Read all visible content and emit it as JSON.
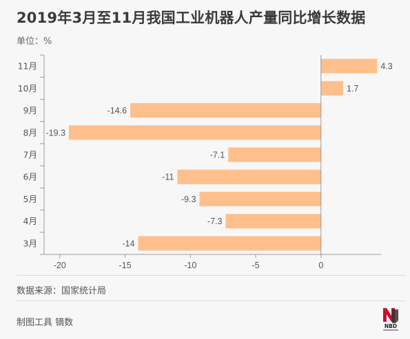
{
  "header": {
    "title": "2019年3月至11月我国工业机器人产量同比增长数据",
    "unit": "单位：%"
  },
  "footer": {
    "source": "数据来源：国家统计局",
    "credit": "制图工具 镝数",
    "logo_text": "NBD"
  },
  "colors": {
    "bar": "#ffbf8c",
    "axis": "#999999",
    "text": "#555555"
  },
  "chart_data": {
    "type": "bar",
    "orientation": "horizontal",
    "categories": [
      "11月",
      "10月",
      "9月",
      "8月",
      "7月",
      "6月",
      "5月",
      "4月",
      "3月"
    ],
    "values": [
      4.3,
      1.7,
      -14.6,
      -19.3,
      -7.1,
      -11,
      -9.3,
      -7.3,
      -14
    ],
    "value_labels": [
      "4.3",
      "1.7",
      "-14.6",
      "-19.3",
      "-7.1",
      "-11",
      "-9.3",
      "-7.3",
      "-14"
    ],
    "x_ticks": [
      -20,
      -15,
      -10,
      -5,
      0
    ],
    "x_tick_labels": [
      "-20",
      "-15",
      "-10",
      "-5",
      "0"
    ],
    "xlim": [
      -21.2,
      4.6
    ],
    "grid": false,
    "legend": "none"
  }
}
